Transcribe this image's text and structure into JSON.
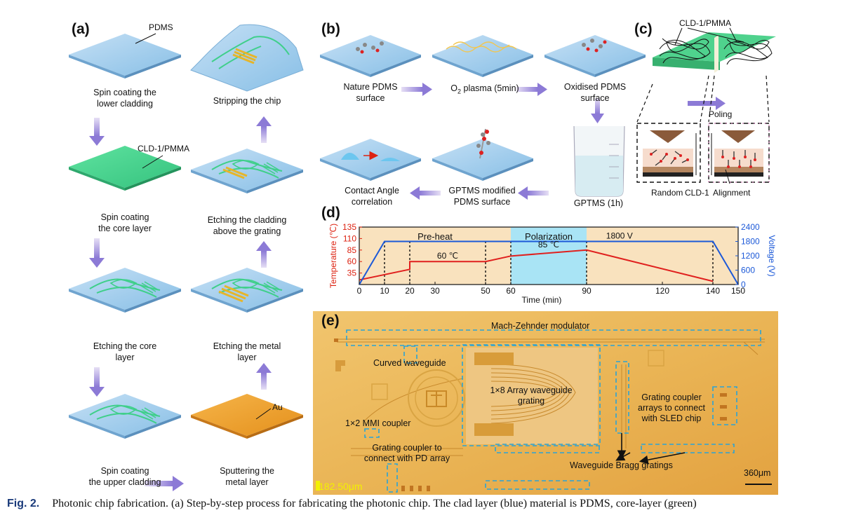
{
  "panel_a": {
    "label": "(a)",
    "pdms_label": "PDMS",
    "cld_label": "CLD-1/PMMA",
    "au_label": "Au",
    "steps": {
      "s1": [
        "Spin coating the",
        "lower cladding"
      ],
      "s2": [
        "Spin coating",
        "the core layer"
      ],
      "s3": [
        "Etching the core",
        "layer"
      ],
      "s4": [
        "Spin coating",
        "the upper cladding"
      ],
      "s5": [
        "Sputtering the",
        "metal layer"
      ],
      "s6": [
        "Etching the metal",
        "layer"
      ],
      "s7": [
        "Etching the cladding",
        "above the grating"
      ],
      "s8": [
        "Stripping the chip"
      ]
    }
  },
  "panel_b": {
    "label": "(b)",
    "steps": {
      "s1": [
        "Nature PDMS",
        "surface"
      ],
      "s2_prefix": "O",
      "s2_sub": "2",
      "s2_suffix": " plasma (5min)",
      "s3": [
        "Oxidised PDMS",
        "surface"
      ],
      "s4": "GPTMS (1h)",
      "s5": [
        "GPTMS modified",
        "PDMS surface"
      ],
      "s6": [
        "Contact Angle",
        "correlation"
      ]
    }
  },
  "panel_c": {
    "label": "(c)",
    "top_label": "CLD-1/PMMA",
    "poling_label": "Poling",
    "random_label": "Random",
    "cld_label": "CLD-1",
    "alignment_label": "Alignment"
  },
  "panel_d": {
    "label": "(d)",
    "region_preheat": "Pre-heat",
    "region_polarization": "Polarization",
    "temp_60": "60 ℃",
    "temp_85": "85 ℃",
    "voltage_label": "1800 V",
    "chart_data": {
      "type": "line",
      "xlabel": "Time (min)",
      "ylabel_left": "Temperature (℃)",
      "ylabel_right": "Voltage (V)",
      "xlim": [
        0,
        150
      ],
      "ylim_left": [
        10,
        135
      ],
      "ylim_right": [
        0,
        2400
      ],
      "x_ticks": [
        0,
        10,
        20,
        30,
        50,
        60,
        90,
        120,
        140,
        150
      ],
      "y_ticks_left": [
        35,
        60,
        85,
        110,
        135
      ],
      "y_ticks_right": [
        0,
        600,
        1200,
        1800,
        2400
      ],
      "series": [
        {
          "axis": "left",
          "color": "#e0201e",
          "x": [
            0,
            20,
            20,
            50,
            60,
            90,
            140
          ],
          "y": [
            20,
            43,
            60,
            60,
            72,
            85,
            17
          ]
        },
        {
          "axis": "right",
          "color": "#1c59d8",
          "x": [
            0,
            10,
            140,
            150
          ],
          "y": [
            0,
            1800,
            1800,
            0
          ]
        }
      ],
      "regions": [
        {
          "x0": 0,
          "x1": 60,
          "color": "#f9e2be"
        },
        {
          "x0": 60,
          "x1": 90,
          "color": "#a9e4f5"
        },
        {
          "x0": 90,
          "x1": 150,
          "color": "#f9e2be"
        }
      ],
      "dashed_x": [
        10,
        20,
        50,
        60,
        90,
        140
      ]
    }
  },
  "panel_e": {
    "label": "(e)",
    "labels": {
      "mzm": "Mach-Zehnder modulator",
      "curved": "Curved waveguide",
      "array": [
        "1×8 Array waveguide",
        "grating"
      ],
      "grating_sled": [
        "Grating coupler",
        "arrays to connect",
        "with SLED chip"
      ],
      "mmi": "1×2 MMI coupler",
      "grating_pd": [
        "Grating coupler to",
        "connect with PD array"
      ],
      "bragg": "Waveguide Bragg gratings",
      "scalebar": "360μm",
      "yellow_readout": "182.50μm"
    }
  },
  "caption": {
    "fig": "Fig. 2.",
    "text": "Photonic chip fabrication. (a) Step-by-step process for fabricating the photonic chip. The clad layer (blue) material is PDMS, core-layer (green)"
  }
}
